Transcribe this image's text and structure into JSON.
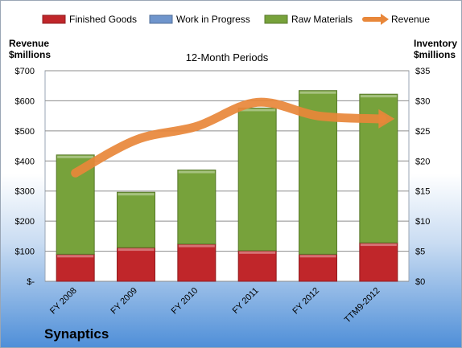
{
  "company": "Synaptics",
  "left_axis_title": [
    "Revenue",
    "$millions"
  ],
  "right_axis_title": [
    "Inventory",
    "$millions"
  ],
  "chart_data": {
    "type": "bar",
    "subtype": "stacked bar with line overlay",
    "title": "12-Month Periods",
    "categories": [
      "FY 2008",
      "FY 2009",
      "FY 2010",
      "FY 2011",
      "FY 2012",
      "TTM9-2012"
    ],
    "legend": {
      "position": "top",
      "entries": [
        "Finished Goods",
        "Work in Progress",
        "Raw Materials",
        "Revenue"
      ]
    },
    "series": [
      {
        "name": "Finished Goods",
        "axis": "right",
        "color": "#c0262a",
        "values": [
          4.5,
          5.6,
          6.2,
          5.1,
          4.5,
          6.4
        ]
      },
      {
        "name": "Work in Progress",
        "axis": "right",
        "color": "#6f95cc",
        "values": [
          0,
          0,
          0,
          0,
          0,
          0
        ]
      },
      {
        "name": "Raw Materials",
        "axis": "right",
        "color": "#77a23b",
        "values": [
          16.5,
          9.2,
          12.3,
          23.7,
          27.2,
          24.7
        ]
      },
      {
        "name": "Revenue",
        "type": "line",
        "axis": "left",
        "color": "#e8873a",
        "values": [
          360,
          470,
          515,
          595,
          550,
          540
        ]
      }
    ],
    "y_left": {
      "ylim": [
        0,
        700
      ],
      "ticks": [
        "$-",
        "$100",
        "$200",
        "$300",
        "$400",
        "$500",
        "$600",
        "$700"
      ],
      "tick_values": [
        0,
        100,
        200,
        300,
        400,
        500,
        600,
        700
      ]
    },
    "y_right": {
      "ylim": [
        0,
        35
      ],
      "ticks": [
        "$0",
        "$5",
        "$10",
        "$15",
        "$20",
        "$25",
        "$30",
        "$35"
      ],
      "tick_values": [
        0,
        5,
        10,
        15,
        20,
        25,
        30,
        35
      ]
    },
    "grid": true
  }
}
